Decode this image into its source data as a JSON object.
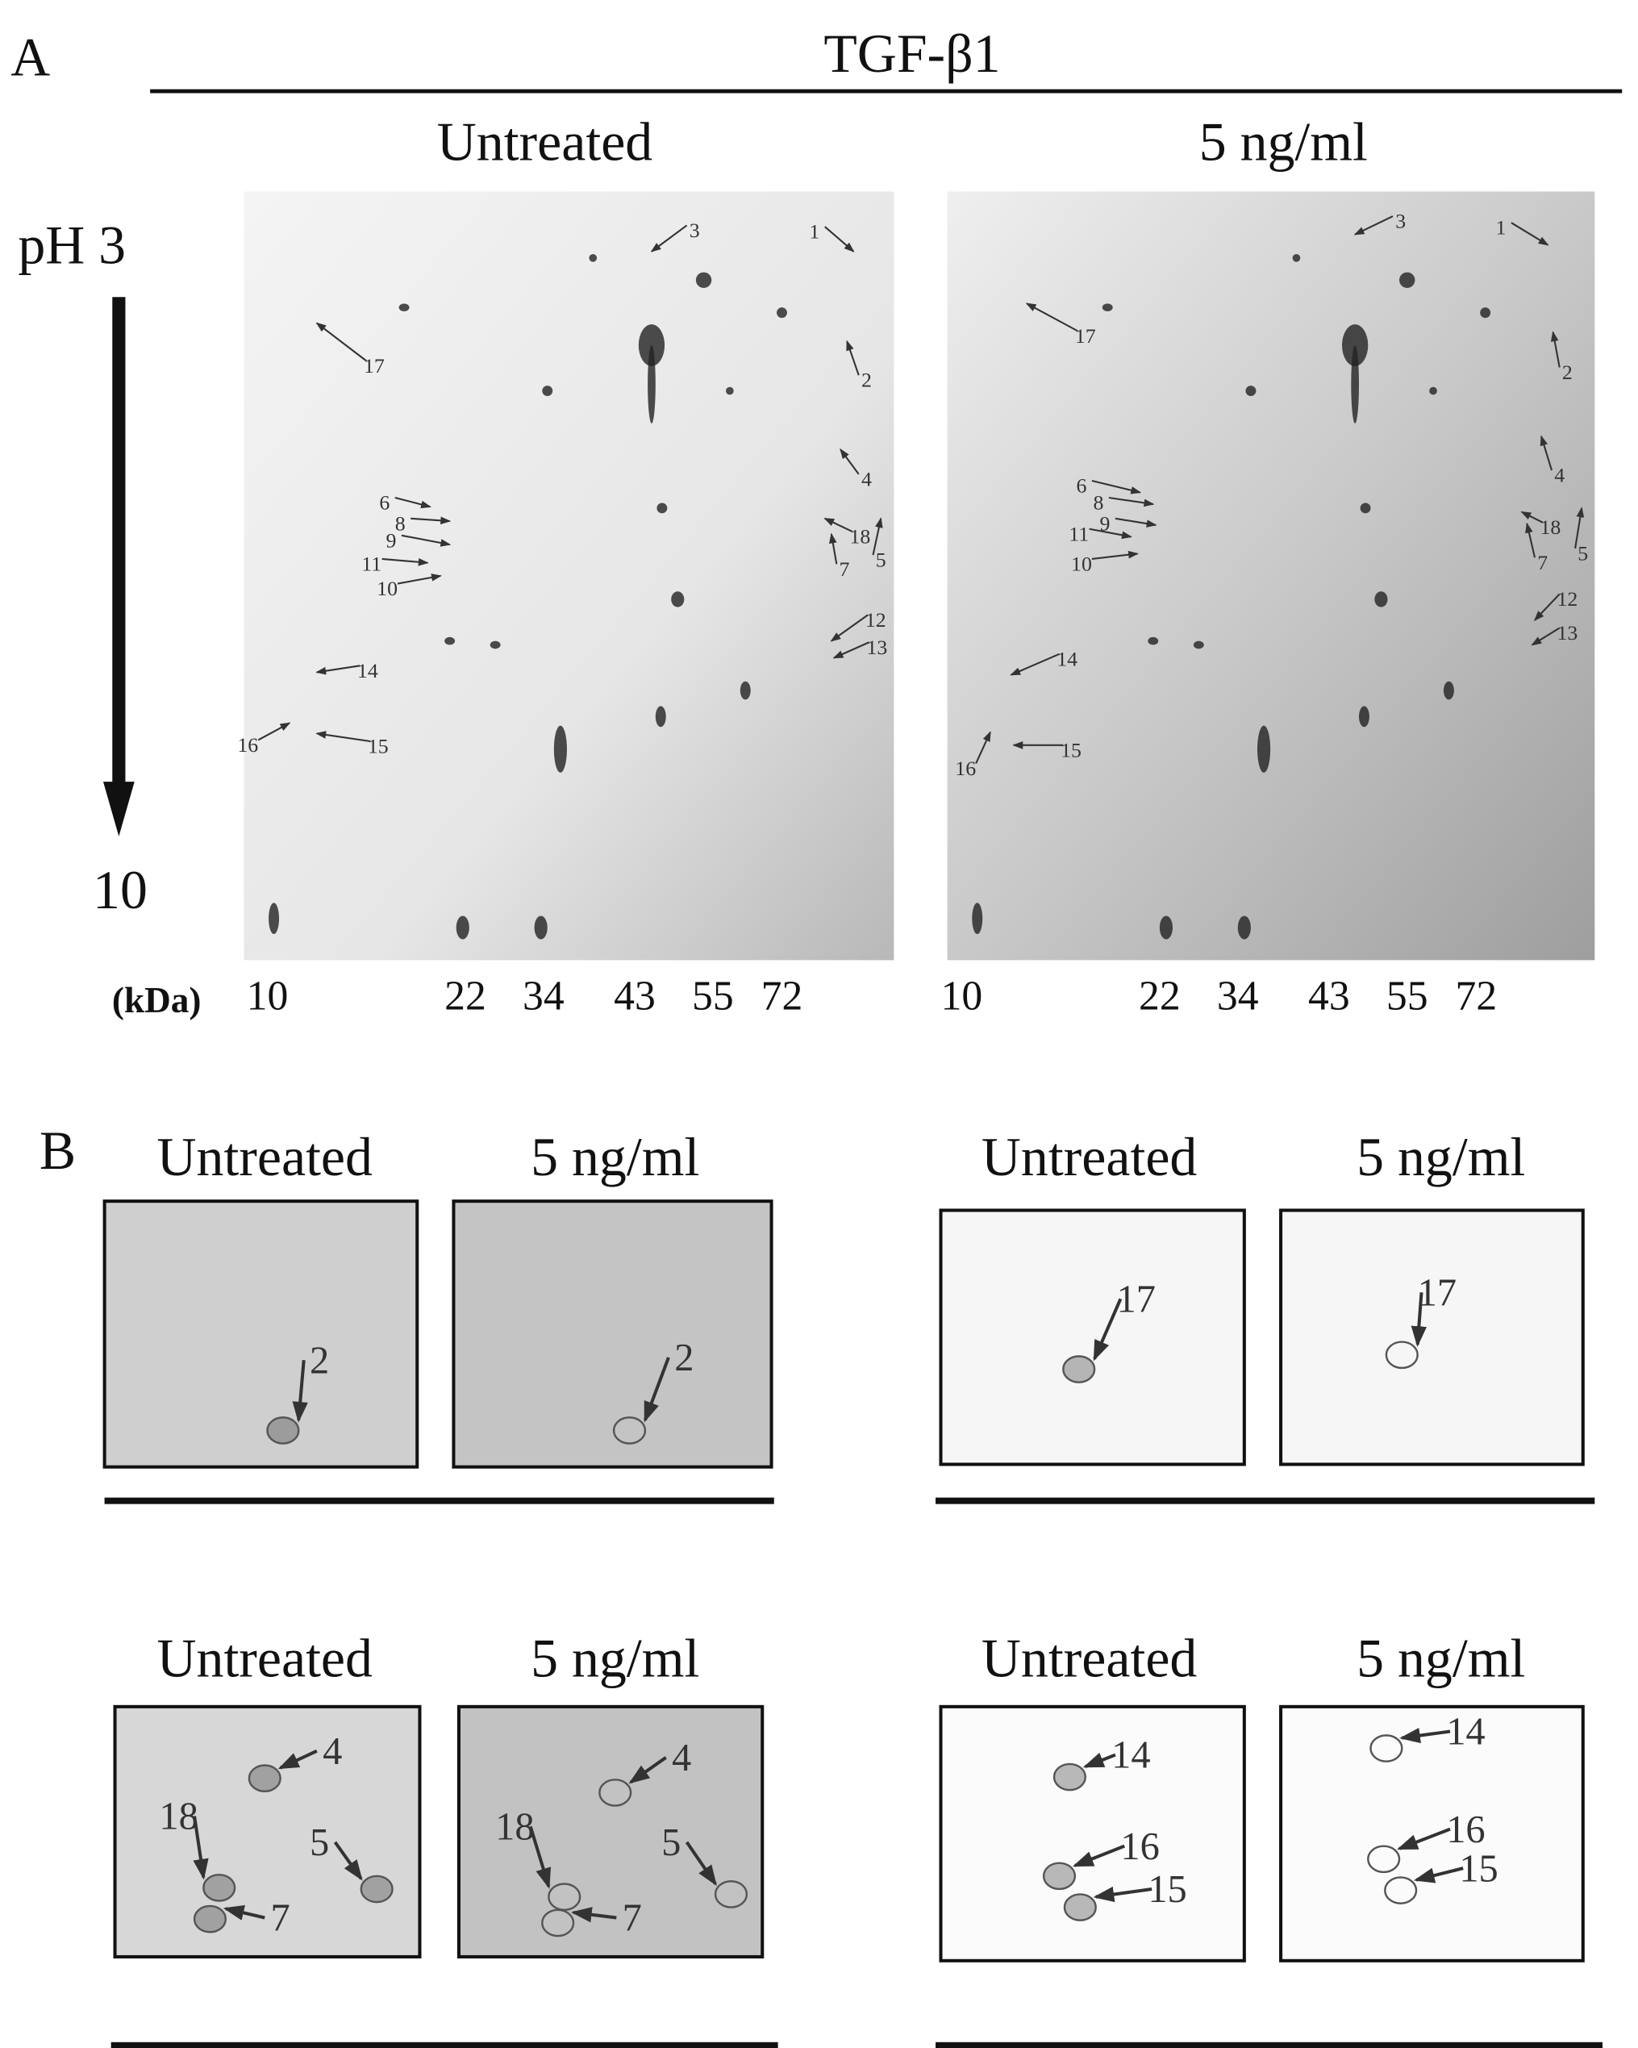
{
  "panel_a": {
    "label": "A",
    "treatment": "TGF-β1",
    "ph_top": "pH 3",
    "ph_bottom": "10",
    "mw_unit": "(kDa)",
    "gels": [
      {
        "title": "Untreated",
        "spots": [
          "1",
          "2",
          "3",
          "4",
          "5",
          "6",
          "7",
          "8",
          "9",
          "10",
          "11",
          "12",
          "13",
          "14",
          "15",
          "16",
          "17",
          "18"
        ],
        "mw_markers": [
          "10",
          "22",
          "34",
          "43",
          "55",
          "72"
        ]
      },
      {
        "title": "5 ng/ml",
        "spots": [
          "1",
          "2",
          "3",
          "4",
          "5",
          "6",
          "7",
          "8",
          "9",
          "10",
          "11",
          "12",
          "13",
          "14",
          "15",
          "16",
          "17",
          "18"
        ],
        "mw_markers": [
          "10",
          "22",
          "34",
          "43",
          "55",
          "72"
        ]
      }
    ]
  },
  "panel_b": {
    "label": "B",
    "groups": [
      {
        "panels": [
          {
            "title": "Untreated",
            "spots": [
              "2"
            ]
          },
          {
            "title": "5 ng/ml",
            "spots": [
              "2"
            ]
          }
        ]
      },
      {
        "panels": [
          {
            "title": "Untreated",
            "spots": [
              "17"
            ]
          },
          {
            "title": "5 ng/ml",
            "spots": [
              "17"
            ]
          }
        ]
      },
      {
        "panels": [
          {
            "title": "Untreated",
            "spots": [
              "4",
              "18",
              "5",
              "7"
            ]
          },
          {
            "title": "5 ng/ml",
            "spots": [
              "4",
              "18",
              "5",
              "7"
            ]
          }
        ]
      },
      {
        "panels": [
          {
            "title": "Untreated",
            "spots": [
              "14",
              "16",
              "15"
            ]
          },
          {
            "title": "5 ng/ml",
            "spots": [
              "14",
              "16",
              "15"
            ]
          }
        ]
      }
    ]
  }
}
